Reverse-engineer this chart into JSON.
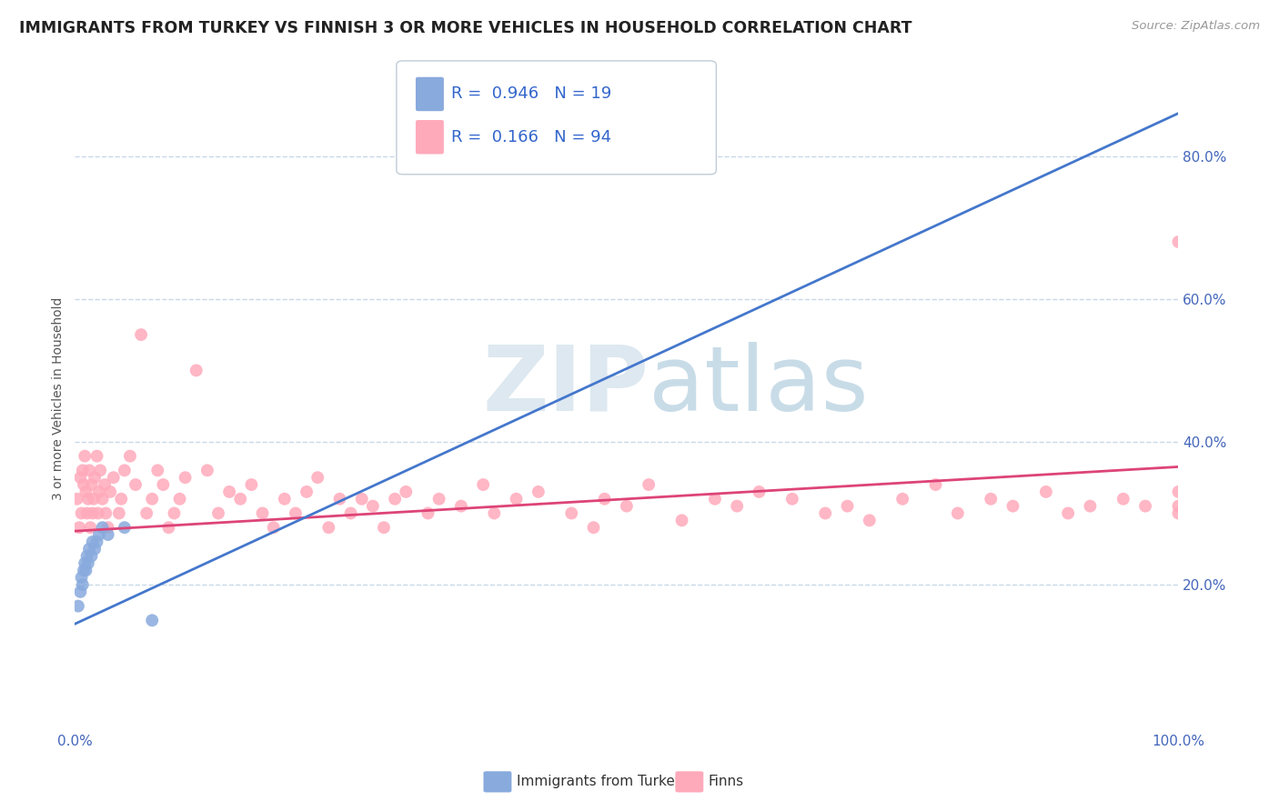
{
  "title": "IMMIGRANTS FROM TURKEY VS FINNISH 3 OR MORE VEHICLES IN HOUSEHOLD CORRELATION CHART",
  "source_text": "Source: ZipAtlas.com",
  "ylabel": "3 or more Vehicles in Household",
  "xlim": [
    0,
    100
  ],
  "ylim": [
    0,
    92
  ],
  "yticks_right": [
    20,
    40,
    60,
    80
  ],
  "background_color": "#ffffff",
  "grid_color": "#c8d8e8",
  "watermark_zip": "ZIP",
  "watermark_atlas": "atlas",
  "blue_color": "#88aadd",
  "pink_color": "#ffaabb",
  "blue_line_color": "#4477cc",
  "pink_line_color": "#dd4477",
  "legend_R_blue": "0.946",
  "legend_N_blue": "19",
  "legend_R_pink": "0.166",
  "legend_N_pink": "94",
  "legend_label_blue": "Immigrants from Turkey",
  "legend_label_pink": "Finns",
  "blue_line_x0": 0,
  "blue_line_y0": 14.5,
  "blue_line_x1": 100,
  "blue_line_y1": 86.0,
  "pink_line_x0": 0,
  "pink_line_y0": 27.5,
  "pink_line_x1": 100,
  "pink_line_y1": 36.5,
  "blue_x": [
    0.3,
    0.5,
    0.6,
    0.7,
    0.8,
    0.9,
    1.0,
    1.1,
    1.2,
    1.3,
    1.5,
    1.6,
    1.8,
    2.0,
    2.2,
    2.5,
    3.0,
    4.5,
    7.0
  ],
  "blue_y": [
    17,
    19,
    21,
    20,
    22,
    23,
    22,
    24,
    23,
    25,
    24,
    26,
    25,
    26,
    27,
    28,
    27,
    28,
    15
  ],
  "pink_x": [
    0.2,
    0.4,
    0.5,
    0.6,
    0.7,
    0.8,
    0.9,
    1.0,
    1.1,
    1.2,
    1.3,
    1.4,
    1.5,
    1.6,
    1.7,
    1.8,
    2.0,
    2.1,
    2.2,
    2.3,
    2.5,
    2.7,
    2.8,
    3.0,
    3.2,
    3.5,
    4.0,
    4.2,
    4.5,
    5.0,
    5.5,
    6.0,
    6.5,
    7.0,
    7.5,
    8.0,
    8.5,
    9.0,
    9.5,
    10.0,
    11.0,
    12.0,
    13.0,
    14.0,
    15.0,
    16.0,
    17.0,
    18.0,
    19.0,
    20.0,
    21.0,
    22.0,
    23.0,
    24.0,
    25.0,
    26.0,
    27.0,
    28.0,
    29.0,
    30.0,
    32.0,
    33.0,
    35.0,
    37.0,
    38.0,
    40.0,
    42.0,
    45.0,
    47.0,
    48.0,
    50.0,
    52.0,
    55.0,
    58.0,
    60.0,
    62.0,
    65.0,
    68.0,
    70.0,
    72.0,
    75.0,
    78.0,
    80.0,
    83.0,
    85.0,
    88.0,
    90.0,
    92.0,
    95.0,
    97.0,
    100.0,
    100.0,
    100.0,
    100.0
  ],
  "pink_y": [
    32,
    28,
    35,
    30,
    36,
    34,
    38,
    33,
    30,
    32,
    36,
    28,
    34,
    30,
    32,
    35,
    38,
    30,
    33,
    36,
    32,
    34,
    30,
    28,
    33,
    35,
    30,
    32,
    36,
    38,
    34,
    55,
    30,
    32,
    36,
    34,
    28,
    30,
    32,
    35,
    50,
    36,
    30,
    33,
    32,
    34,
    30,
    28,
    32,
    30,
    33,
    35,
    28,
    32,
    30,
    32,
    31,
    28,
    32,
    33,
    30,
    32,
    31,
    34,
    30,
    32,
    33,
    30,
    28,
    32,
    31,
    34,
    29,
    32,
    31,
    33,
    32,
    30,
    31,
    29,
    32,
    34,
    30,
    32,
    31,
    33,
    30,
    31,
    32,
    31,
    33,
    30,
    31,
    68
  ]
}
